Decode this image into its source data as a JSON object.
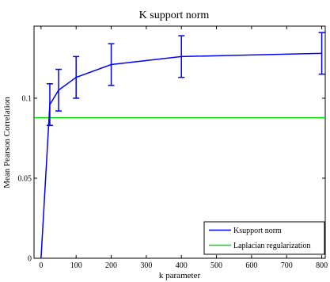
{
  "chart_data": {
    "type": "line",
    "title": "K support norm",
    "xlabel": "k parameter",
    "ylabel": "Mean Pearson Correlation",
    "xlim": [
      -20,
      810
    ],
    "ylim": [
      0,
      0.145
    ],
    "xticks": [
      0,
      100,
      200,
      300,
      400,
      500,
      600,
      700,
      800
    ],
    "xtick_labels": [
      "0",
      "100",
      "200",
      "300",
      "400",
      "500",
      "600",
      "700",
      "800"
    ],
    "yticks": [
      0,
      0.05,
      0.1
    ],
    "ytick_labels": [
      "0",
      "0.05",
      "0.1"
    ],
    "legend_position": "bottom-right",
    "grid": false,
    "series": [
      {
        "name": "Ksupport norm",
        "color": "#0000ff",
        "x": [
          0,
          25,
          50,
          100,
          200,
          400,
          800
        ],
        "y": [
          0,
          0.096,
          0.105,
          0.113,
          0.121,
          0.126,
          0.128
        ],
        "err_low": [
          null,
          0.083,
          0.092,
          0.1,
          0.108,
          0.113,
          0.115
        ],
        "err_high": [
          null,
          0.109,
          0.118,
          0.126,
          0.134,
          0.139,
          0.141
        ]
      },
      {
        "name": "Laplacian regularization",
        "color": "#00dd00",
        "type": "hline",
        "y": 0.0878
      }
    ]
  }
}
